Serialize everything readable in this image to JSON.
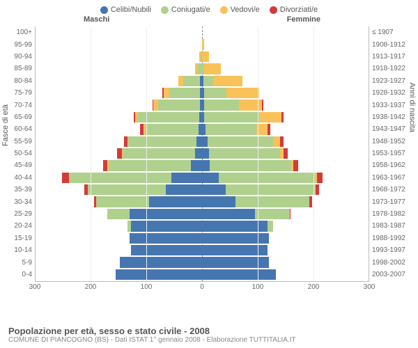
{
  "legend": [
    {
      "label": "Celibi/Nubili",
      "color": "#4676b0"
    },
    {
      "label": "Coniugati/e",
      "color": "#b0d08e"
    },
    {
      "label": "Vedovi/e",
      "color": "#f8c258"
    },
    {
      "label": "Divorziati/e",
      "color": "#d43a3a"
    }
  ],
  "gender": {
    "male": "Maschi",
    "female": "Femmine"
  },
  "axes": {
    "left_title": "Fasce di età",
    "right_title": "Anni di nascita",
    "x_max": 300,
    "x_ticks": [
      300,
      200,
      100,
      0,
      100,
      200,
      300
    ]
  },
  "title": "Popolazione per età, sesso e stato civile - 2008",
  "subtitle": "COMUNE DI PIANCOGNO (BS) - Dati ISTAT 1° gennaio 2008 - Elaborazione TUTTITALIA.IT",
  "style": {
    "bg": "#ffffff",
    "grid_color": "#eeeeee",
    "axis_color": "#bbbbbb",
    "text_color": "#555555",
    "font_family": "Arial",
    "label_fontsize": 10,
    "title_fontsize": 13
  },
  "rows": [
    {
      "age": "100+",
      "birth": "≤ 1907",
      "m": [
        0,
        0,
        0,
        0
      ],
      "f": [
        0,
        0,
        0,
        0
      ]
    },
    {
      "age": "95-99",
      "birth": "1908-1912",
      "m": [
        0,
        0,
        0,
        0
      ],
      "f": [
        0,
        0,
        4,
        0
      ]
    },
    {
      "age": "90-94",
      "birth": "1913-1917",
      "m": [
        0,
        2,
        3,
        0
      ],
      "f": [
        0,
        0,
        12,
        0
      ]
    },
    {
      "age": "85-89",
      "birth": "1918-1922",
      "m": [
        0,
        8,
        4,
        0
      ],
      "f": [
        0,
        4,
        30,
        0
      ]
    },
    {
      "age": "80-84",
      "birth": "1923-1927",
      "m": [
        4,
        30,
        8,
        0
      ],
      "f": [
        2,
        18,
        52,
        0
      ]
    },
    {
      "age": "75-79",
      "birth": "1928-1932",
      "m": [
        4,
        55,
        10,
        2
      ],
      "f": [
        4,
        40,
        58,
        0
      ]
    },
    {
      "age": "70-74",
      "birth": "1933-1937",
      "m": [
        4,
        75,
        8,
        2
      ],
      "f": [
        4,
        62,
        42,
        2
      ]
    },
    {
      "age": "65-69",
      "birth": "1938-1942",
      "m": [
        5,
        110,
        5,
        2
      ],
      "f": [
        4,
        98,
        40,
        4
      ]
    },
    {
      "age": "60-64",
      "birth": "1943-1947",
      "m": [
        6,
        95,
        4,
        6
      ],
      "f": [
        6,
        92,
        20,
        4
      ]
    },
    {
      "age": "55-59",
      "birth": "1948-1952",
      "m": [
        10,
        122,
        2,
        6
      ],
      "f": [
        10,
        118,
        12,
        6
      ]
    },
    {
      "age": "50-54",
      "birth": "1953-1957",
      "m": [
        12,
        130,
        2,
        8
      ],
      "f": [
        12,
        128,
        6,
        8
      ]
    },
    {
      "age": "45-49",
      "birth": "1958-1962",
      "m": [
        20,
        148,
        2,
        8
      ],
      "f": [
        14,
        146,
        4,
        8
      ]
    },
    {
      "age": "40-44",
      "birth": "1963-1967",
      "m": [
        55,
        182,
        2,
        12
      ],
      "f": [
        30,
        172,
        4,
        10
      ]
    },
    {
      "age": "35-39",
      "birth": "1968-1972",
      "m": [
        65,
        140,
        0,
        6
      ],
      "f": [
        42,
        160,
        2,
        6
      ]
    },
    {
      "age": "30-34",
      "birth": "1973-1977",
      "m": [
        95,
        95,
        0,
        4
      ],
      "f": [
        60,
        132,
        0,
        6
      ]
    },
    {
      "age": "25-29",
      "birth": "1978-1982",
      "m": [
        130,
        40,
        0,
        0
      ],
      "f": [
        95,
        62,
        0,
        2
      ]
    },
    {
      "age": "20-24",
      "birth": "1983-1987",
      "m": [
        128,
        6,
        0,
        0
      ],
      "f": [
        118,
        10,
        0,
        0
      ]
    },
    {
      "age": "15-19",
      "birth": "1988-1992",
      "m": [
        130,
        0,
        0,
        0
      ],
      "f": [
        120,
        0,
        0,
        0
      ]
    },
    {
      "age": "10-14",
      "birth": "1993-1997",
      "m": [
        128,
        0,
        0,
        0
      ],
      "f": [
        118,
        0,
        0,
        0
      ]
    },
    {
      "age": "5-9",
      "birth": "1998-2002",
      "m": [
        148,
        0,
        0,
        0
      ],
      "f": [
        120,
        0,
        0,
        0
      ]
    },
    {
      "age": "0-4",
      "birth": "2003-2007",
      "m": [
        155,
        0,
        0,
        0
      ],
      "f": [
        132,
        0,
        0,
        0
      ]
    }
  ]
}
